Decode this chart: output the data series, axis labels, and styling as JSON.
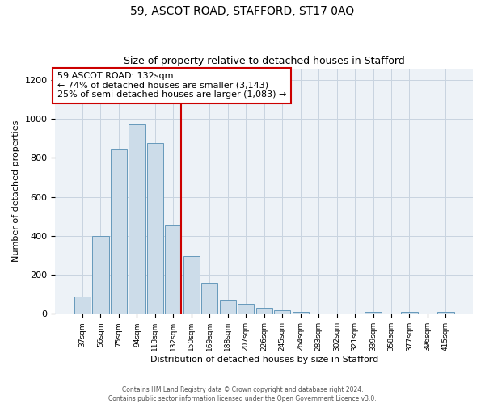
{
  "title": "59, ASCOT ROAD, STAFFORD, ST17 0AQ",
  "subtitle": "Size of property relative to detached houses in Stafford",
  "xlabel": "Distribution of detached houses by size in Stafford",
  "ylabel": "Number of detached properties",
  "categories": [
    "37sqm",
    "56sqm",
    "75sqm",
    "94sqm",
    "113sqm",
    "132sqm",
    "150sqm",
    "169sqm",
    "188sqm",
    "207sqm",
    "226sqm",
    "245sqm",
    "264sqm",
    "283sqm",
    "302sqm",
    "321sqm",
    "339sqm",
    "358sqm",
    "377sqm",
    "396sqm",
    "415sqm"
  ],
  "values": [
    90,
    400,
    845,
    970,
    875,
    455,
    295,
    160,
    70,
    50,
    30,
    18,
    10,
    0,
    0,
    0,
    8,
    0,
    8,
    0,
    8
  ],
  "bar_color": "#ccdce9",
  "bar_edge_color": "#6699bb",
  "highlight_line_color": "#cc0000",
  "annotation_text": "59 ASCOT ROAD: 132sqm\n← 74% of detached houses are smaller (3,143)\n25% of semi-detached houses are larger (1,083) →",
  "annotation_box_color": "#ffffff",
  "annotation_box_edge_color": "#cc0000",
  "ylim": [
    0,
    1260
  ],
  "yticks": [
    0,
    200,
    400,
    600,
    800,
    1000,
    1200
  ],
  "plot_bg_color": "#edf2f7",
  "footer_line1": "Contains HM Land Registry data © Crown copyright and database right 2024.",
  "footer_line2": "Contains public sector information licensed under the Open Government Licence v3.0.",
  "title_fontsize": 10,
  "subtitle_fontsize": 9,
  "xlabel_fontsize": 8,
  "ylabel_fontsize": 8,
  "tick_fontsize": 8,
  "annot_fontsize": 8
}
